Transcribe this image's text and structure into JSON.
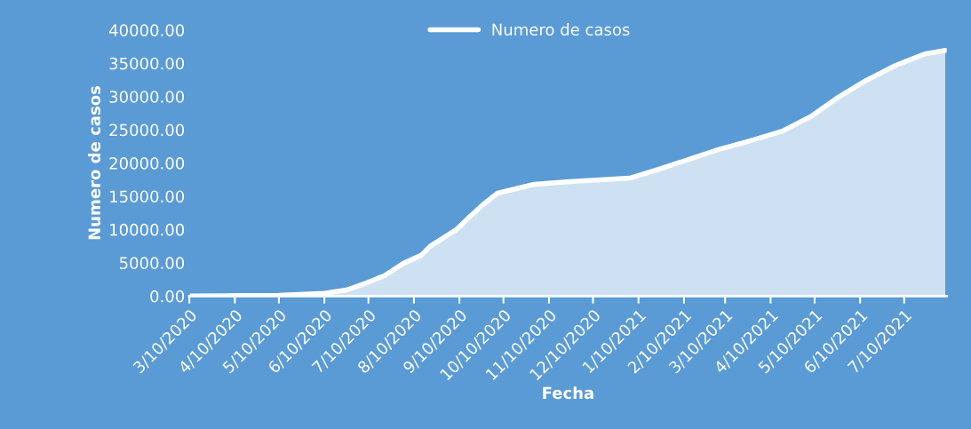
{
  "chart_data": {
    "type": "area",
    "xlabel": "Fecha",
    "ylabel": "Numero de casos",
    "x": [
      "2020-03-10",
      "2020-04-10",
      "2020-05-10",
      "2020-06-10",
      "2020-06-25",
      "2020-07-09",
      "2020-07-21",
      "2020-08-03",
      "2020-08-15",
      "2020-08-21",
      "2020-09-08",
      "2020-09-18",
      "2020-09-26",
      "2020-10-06",
      "2020-10-31",
      "2020-11-24",
      "2021-01-04",
      "2021-01-24",
      "2021-02-13",
      "2021-03-05",
      "2021-03-29",
      "2021-04-18",
      "2021-05-08",
      "2021-05-25",
      "2021-06-14",
      "2021-07-04",
      "2021-07-24",
      "2021-08-07"
    ],
    "series": [
      {
        "name": "Numero de casos",
        "color": "#ffffff",
        "values": [
          0,
          50,
          100,
          400,
          900,
          2000,
          3070,
          4930,
          6130,
          7470,
          10000,
          12130,
          13730,
          15470,
          16800,
          17200,
          17730,
          19070,
          20530,
          22000,
          23470,
          24800,
          27070,
          29730,
          32400,
          34670,
          36400,
          36930
        ]
      }
    ],
    "xlim": [
      "2020-03-10",
      "2021-08-08"
    ],
    "xticks": [
      {
        "value": "2020-03-10",
        "label": "3/10/2020"
      },
      {
        "value": "2020-04-10",
        "label": "4/10/2020"
      },
      {
        "value": "2020-05-10",
        "label": "5/10/2020"
      },
      {
        "value": "2020-06-10",
        "label": "6/10/2020"
      },
      {
        "value": "2020-07-10",
        "label": "7/10/2020"
      },
      {
        "value": "2020-08-10",
        "label": "8/10/2020"
      },
      {
        "value": "2020-09-10",
        "label": "9/10/2020"
      },
      {
        "value": "2020-10-10",
        "label": "10/10/2020"
      },
      {
        "value": "2020-11-10",
        "label": "11/10/2020"
      },
      {
        "value": "2020-12-10",
        "label": "12/10/2020"
      },
      {
        "value": "2021-01-10",
        "label": "1/10/2021"
      },
      {
        "value": "2021-02-10",
        "label": "2/10/2021"
      },
      {
        "value": "2021-03-10",
        "label": "3/10/2021"
      },
      {
        "value": "2021-04-10",
        "label": "4/10/2021"
      },
      {
        "value": "2021-05-10",
        "label": "5/10/2021"
      },
      {
        "value": "2021-06-10",
        "label": "6/10/2021"
      },
      {
        "value": "2021-07-10",
        "label": "7/10/2021"
      }
    ],
    "ylim": [
      0,
      40000
    ],
    "yticks": [
      {
        "value": 0,
        "label": "0.00"
      },
      {
        "value": 5000,
        "label": "5000.00"
      },
      {
        "value": 10000,
        "label": "10000.00"
      },
      {
        "value": 15000,
        "label": "15000.00"
      },
      {
        "value": 20000,
        "label": "20000.00"
      },
      {
        "value": 25000,
        "label": "25000.00"
      },
      {
        "value": 30000,
        "label": "30000.00"
      },
      {
        "value": 35000,
        "label": "35000.00"
      },
      {
        "value": 40000,
        "label": "40000.00"
      }
    ],
    "grid": false,
    "legend": "top",
    "marker": "none",
    "line_style": "solid"
  }
}
